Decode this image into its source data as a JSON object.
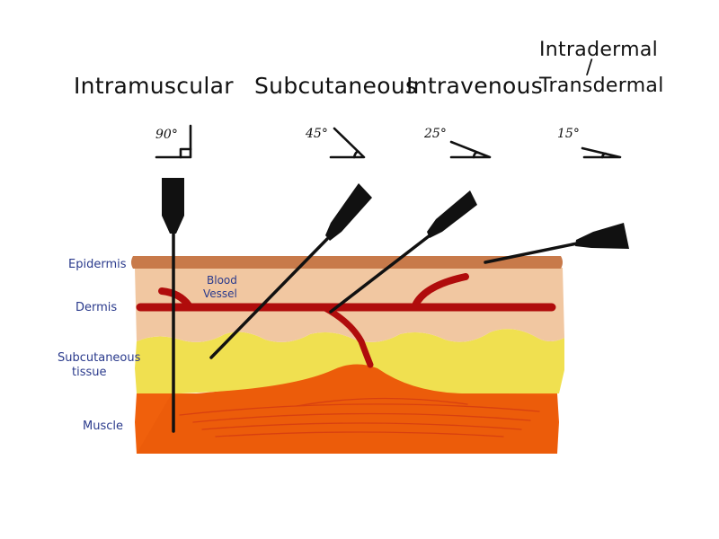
{
  "techniques": {
    "intramuscular": {
      "label": "Intramuscular",
      "angle": "90°"
    },
    "subcutaneous": {
      "label": "Subcutaneous",
      "angle": "45°"
    },
    "intravenous": {
      "label": "Intravenous",
      "angle": "25°"
    },
    "intradermal": {
      "label_line1": "Intradermal",
      "label_slash": "/",
      "label_line2": "Transdermal",
      "angle": "15°"
    }
  },
  "layers": {
    "epidermis": "Epidermis",
    "dermis": "Dermis",
    "subcutaneous_line1": "Subcutaneous",
    "subcutaneous_line2": "tissue",
    "muscle": "Muscle"
  },
  "blood_vessel": {
    "line1": "Blood",
    "line2": "Vessel"
  },
  "colors": {
    "epidermis": "#c87a4a",
    "dermis": "#f1c7a1",
    "subcutaneous": "#f0e050",
    "muscle": "#f0600c",
    "muscle_bulge": "#e8560a",
    "vessel": "#b00c0c",
    "label_ink": "#2a3a8c"
  }
}
